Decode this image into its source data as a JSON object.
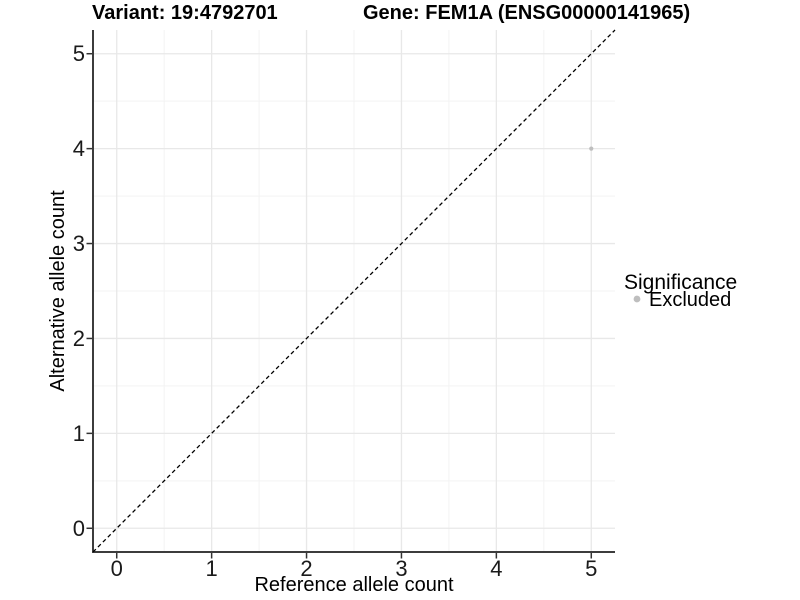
{
  "chart_data": {
    "type": "scatter",
    "titles": {
      "variant": "Variant: 19:4792701",
      "gene": "Gene: FEM1A (ENSG00000141965)"
    },
    "xlabel": "Reference allele count",
    "ylabel": "Alternative allele count",
    "xlim": [
      -0.25,
      5.25
    ],
    "ylim": [
      -0.25,
      5.25
    ],
    "xticks": [
      0,
      1,
      2,
      3,
      4,
      5
    ],
    "yticks": [
      0,
      1,
      2,
      3,
      4,
      5
    ],
    "minor_ticks": [
      0.5,
      1.5,
      2.5,
      3.5,
      4.5
    ],
    "grid": "major+minor",
    "series": [
      {
        "name": "Excluded",
        "color": "#bebebe",
        "points": [
          {
            "x": 5,
            "y": 4
          }
        ]
      }
    ],
    "reference_line": {
      "label": "identity",
      "slope": 1,
      "intercept": 0,
      "style": "dashed",
      "color": "#000000"
    },
    "legend": {
      "title": "Significance",
      "position": "right-center",
      "entries": [
        {
          "label": "Excluded",
          "color": "#bebebe"
        }
      ]
    },
    "colors": {
      "background": "#ffffff",
      "grid_major": "#e8e8e8",
      "grid_minor": "#f3f3f3",
      "axis_line": "#3c3c3c",
      "tick": "#333333",
      "point": "#bebebe"
    }
  }
}
